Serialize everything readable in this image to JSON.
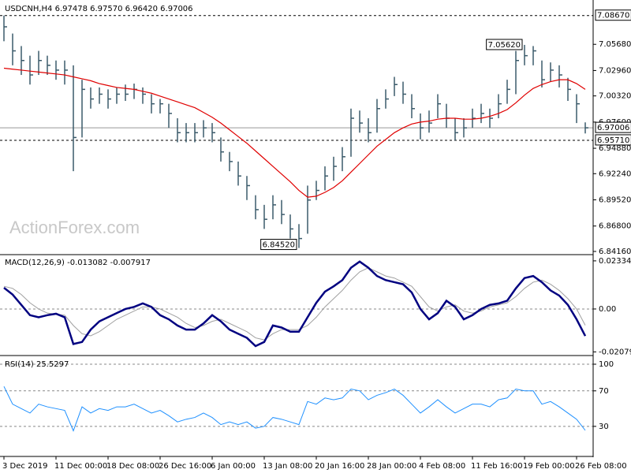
{
  "chart_data": [
    {
      "type": "ohlc",
      "title": "USDCNH,H4  6.97478 6.97570 6.96420 6.97006",
      "watermark": "ActionForex.com",
      "color": "#3a5a6a",
      "categories": [
        "3 Dec 2019",
        null,
        null,
        null,
        null,
        null,
        "11 Dec 00:00",
        null,
        null,
        null,
        null,
        null,
        "18 Dec 08:00",
        null,
        null,
        null,
        null,
        null,
        "26 Dec 16:00",
        null,
        null,
        null,
        null,
        null,
        "6 Jan 00:00",
        null,
        null,
        null,
        null,
        null,
        "13 Jan 08:00",
        null,
        null,
        null,
        null,
        null,
        "20 Jan 16:00",
        null,
        null,
        null,
        null,
        null,
        "28 Jan 00:00",
        null,
        null,
        null,
        null,
        null,
        "4 Feb 08:00",
        null,
        null,
        null,
        null,
        null,
        "11 Feb 16:00",
        null,
        null,
        null,
        null,
        null,
        "19 Feb 00:00",
        null,
        null,
        null,
        null,
        null,
        "26 Feb 08:00",
        null
      ],
      "high": [
        7.0867,
        7.068,
        7.055,
        7.045,
        7.05,
        7.045,
        7.04,
        7.04,
        7.035,
        7.02,
        7.012,
        7.012,
        7.01,
        7.012,
        7.015,
        7.016,
        7.012,
        7.005,
        7.0,
        6.995,
        6.98,
        6.975,
        6.975,
        6.978,
        6.975,
        6.96,
        6.945,
        6.935,
        6.92,
        6.9,
        6.89,
        6.9,
        6.895,
        6.88,
        6.87,
        6.91,
        6.915,
        6.93,
        6.94,
        6.95,
        6.99,
        6.988,
        6.98,
        7.0,
        7.01,
        7.023,
        7.018,
        7.005,
        6.985,
        6.988,
        7.005,
        6.995,
        6.98,
        6.98,
        6.99,
        6.995,
        6.99,
        7.005,
        7.02,
        7.05,
        7.0562,
        7.055,
        7.04,
        7.038,
        7.035,
        7.022,
        7.005,
        6.9757
      ],
      "low": [
        7.06,
        7.035,
        7.025,
        7.015,
        7.025,
        7.025,
        7.02,
        7.015,
        6.925,
        6.96,
        6.99,
        6.995,
        6.99,
        6.995,
        6.998,
        7.0,
        6.995,
        6.985,
        6.985,
        6.97,
        6.955,
        6.955,
        6.955,
        6.96,
        6.955,
        6.935,
        6.925,
        6.91,
        6.895,
        6.875,
        6.865,
        6.875,
        6.87,
        6.855,
        6.8452,
        6.86,
        6.895,
        6.905,
        6.915,
        6.925,
        6.94,
        6.965,
        6.955,
        6.965,
        6.99,
        7.003,
        6.995,
        6.98,
        6.958,
        6.965,
        6.98,
        6.97,
        6.957,
        6.96,
        6.97,
        6.975,
        6.97,
        6.98,
        6.995,
        7.005,
        7.035,
        7.035,
        7.012,
        7.018,
        7.012,
        6.998,
        6.975,
        6.9642
      ],
      "close": [
        7.075,
        7.05,
        7.04,
        7.025,
        7.04,
        7.035,
        7.03,
        7.03,
        6.96,
        7.01,
        7.0,
        7.005,
        7.0,
        7.005,
        7.005,
        7.01,
        7.005,
        6.995,
        6.995,
        6.985,
        6.965,
        6.965,
        6.965,
        6.97,
        6.965,
        6.945,
        6.935,
        6.92,
        6.91,
        6.885,
        6.875,
        6.89,
        6.88,
        6.865,
        6.855,
        6.895,
        6.905,
        6.92,
        6.93,
        6.94,
        6.98,
        6.975,
        6.965,
        6.99,
        7.0,
        7.015,
        7.005,
        6.99,
        6.97,
        6.975,
        6.995,
        6.98,
        6.965,
        6.97,
        6.98,
        6.985,
        6.98,
        6.995,
        7.01,
        7.04,
        7.045,
        7.05,
        7.02,
        7.03,
        7.025,
        7.01,
        6.995,
        6.97006
      ],
      "ma": {
        "color": "#e00000",
        "values": [
          7.032,
          7.031,
          7.03,
          7.029,
          7.028,
          7.027,
          7.026,
          7.025,
          7.023,
          7.021,
          7.019,
          7.016,
          7.014,
          7.012,
          7.011,
          7.01,
          7.008,
          7.006,
          7.003,
          7.0,
          6.997,
          6.994,
          6.991,
          6.986,
          6.981,
          6.975,
          6.968,
          6.961,
          6.954,
          6.946,
          6.938,
          6.93,
          6.922,
          6.914,
          6.905,
          6.898,
          6.899,
          6.903,
          6.908,
          6.915,
          6.924,
          6.933,
          6.942,
          6.951,
          6.958,
          6.965,
          6.97,
          6.974,
          6.976,
          6.977,
          6.979,
          6.98,
          6.98,
          6.979,
          6.979,
          6.98,
          6.982,
          6.985,
          6.989,
          6.996,
          7.004,
          7.011,
          7.015,
          7.018,
          7.02,
          7.02,
          7.016,
          7.01
        ]
      },
      "ylim": [
        6.8391,
        7.1004
      ],
      "yticks": [
        {
          "value": 7.0568,
          "label": "7.05680"
        },
        {
          "value": 7.0296,
          "label": "7.02960"
        },
        {
          "value": 7.0032,
          "label": "7.00320"
        },
        {
          "value": 6.976,
          "label": "6.97600"
        },
        {
          "value": 6.9488,
          "label": "6.94880"
        },
        {
          "value": 6.9224,
          "label": "6.92240"
        },
        {
          "value": 6.8952,
          "label": "6.89520"
        },
        {
          "value": 6.868,
          "label": "6.86800"
        },
        {
          "value": 6.8416,
          "label": "6.84160"
        }
      ],
      "levels": [
        {
          "value": 7.0867,
          "label": "7.08670",
          "style": "dashed"
        },
        {
          "value": 6.97006,
          "style": "solid"
        },
        {
          "value": 6.9571,
          "label": "6.95710",
          "style": "dashed"
        }
      ],
      "annotations": [
        {
          "value": 7.0562,
          "label": "7.05620"
        },
        {
          "value": 6.8452,
          "label": "6.84520"
        }
      ]
    },
    {
      "type": "macd",
      "title": "MACD(12,26,9) -0.013082 -0.007917",
      "main": {
        "color": "#000080",
        "values": [
          0.0103,
          0.007,
          0.002,
          -0.003,
          -0.004,
          -0.003,
          -0.0023,
          -0.004,
          -0.017,
          -0.016,
          -0.01,
          -0.006,
          -0.004,
          -0.002,
          0.0,
          0.001,
          0.0027,
          0.001,
          -0.003,
          -0.005,
          -0.008,
          -0.01,
          -0.01,
          -0.007,
          -0.003,
          -0.006,
          -0.01,
          -0.012,
          -0.014,
          -0.018,
          -0.016,
          -0.008,
          -0.009,
          -0.011,
          -0.011,
          -0.004,
          0.003,
          0.0084,
          0.011,
          0.014,
          0.02,
          0.023,
          0.02,
          0.016,
          0.014,
          0.013,
          0.012,
          0.008,
          0.0,
          -0.005,
          -0.002,
          0.004,
          0.001,
          -0.005,
          -0.003,
          0.0,
          0.002,
          0.0027,
          0.004,
          0.01,
          0.015,
          0.016,
          0.013,
          0.009,
          0.0065,
          0.002,
          -0.005,
          -0.013082
        ]
      },
      "signal": {
        "color": "#a0a0a0",
        "values": [
          0.011,
          0.01,
          0.007,
          0.003,
          0.0,
          -0.002,
          -0.0025,
          -0.003,
          -0.008,
          -0.012,
          -0.013,
          -0.011,
          -0.008,
          -0.005,
          -0.003,
          -0.001,
          0.001,
          0.001,
          0.0,
          -0.002,
          -0.004,
          -0.007,
          -0.009,
          -0.008,
          -0.006,
          -0.005,
          -0.007,
          -0.009,
          -0.011,
          -0.014,
          -0.015,
          -0.012,
          -0.01,
          -0.01,
          -0.01,
          -0.008,
          -0.004,
          0.001,
          0.005,
          0.009,
          0.014,
          0.018,
          0.02,
          0.018,
          0.016,
          0.015,
          0.013,
          0.011,
          0.006,
          0.001,
          -0.001,
          0.001,
          0.002,
          -0.001,
          -0.002,
          -0.001,
          0.001,
          0.002,
          0.003,
          0.006,
          0.01,
          0.013,
          0.014,
          0.012,
          0.009,
          0.005,
          0.0,
          -0.007917
        ]
      },
      "ylim": [
        -0.0222,
        0.0256
      ],
      "yticks": [
        0.023345,
        {
          "value": 0,
          "label": "0.00"
        },
        -0.020798
      ]
    },
    {
      "type": "line",
      "title": "RSI(14) 25.5297",
      "color": "#1e90ff",
      "values": [
        75,
        55,
        50,
        45,
        55,
        52,
        50,
        48,
        25,
        52,
        45,
        50,
        48,
        52,
        52,
        55,
        50,
        45,
        48,
        42,
        35,
        38,
        40,
        45,
        40,
        32,
        35,
        32,
        35,
        28,
        30,
        40,
        38,
        35,
        32,
        58,
        55,
        62,
        60,
        62,
        72,
        70,
        60,
        65,
        68,
        72,
        65,
        55,
        45,
        52,
        60,
        52,
        45,
        50,
        55,
        55,
        52,
        60,
        62,
        72,
        70,
        70,
        55,
        58,
        52,
        45,
        38,
        25.5297
      ],
      "ylim": [
        -3,
        108
      ],
      "yticks": [
        100,
        70,
        30
      ]
    }
  ]
}
